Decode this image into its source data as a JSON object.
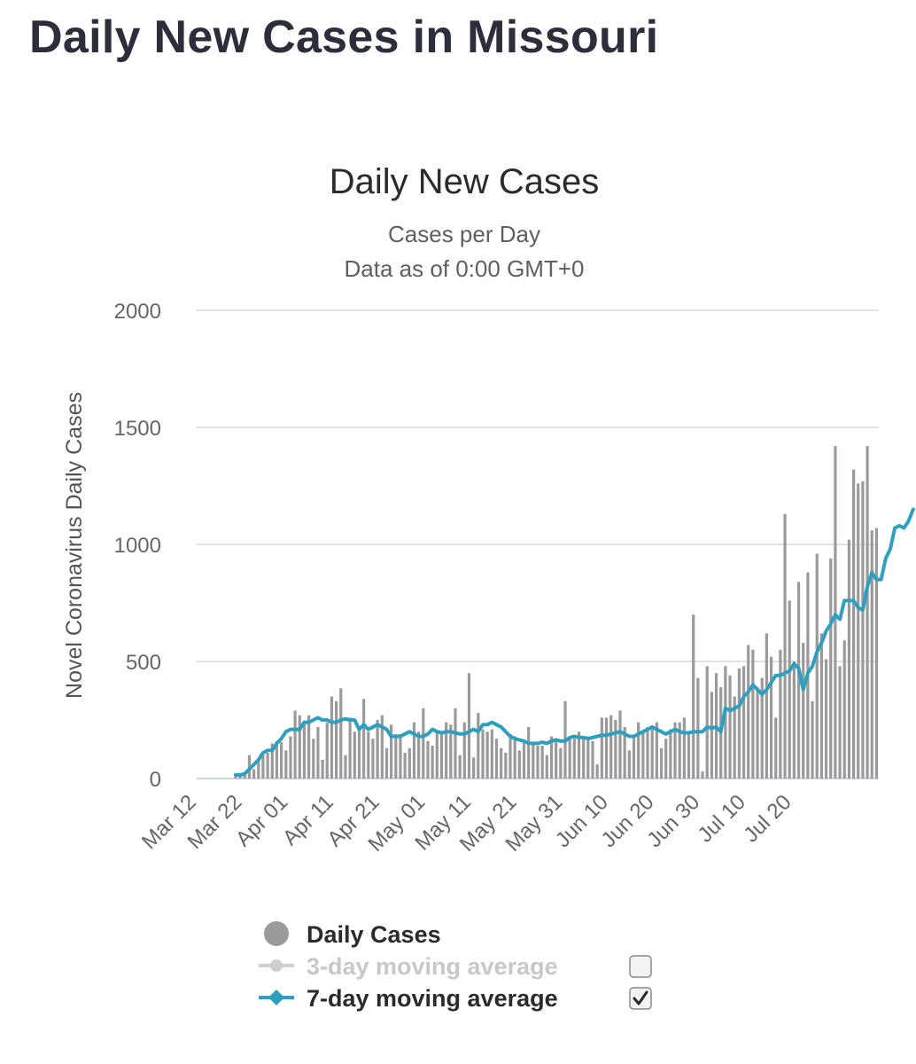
{
  "page": {
    "title": "Daily New Cases in Missouri"
  },
  "chart_data": {
    "type": "bar",
    "title": "Daily New Cases",
    "subtitle_lines": [
      "Cases per Day",
      "Data as of 0:00 GMT+0"
    ],
    "ylabel": "Novel Coronavirus Daily Cases",
    "ylim": [
      0,
      2000
    ],
    "yticks": [
      0,
      500,
      1000,
      1500,
      2000
    ],
    "xtick_labels": [
      "Mar 12",
      "Mar 22",
      "Apr 01",
      "Apr 11",
      "Apr 21",
      "May 01",
      "May 11",
      "May 21",
      "May 31",
      "Jun 10",
      "Jun 20",
      "Jun 30",
      "Jul 10",
      "Jul 20"
    ],
    "xtick_every": 10,
    "start_date": "Mar 12",
    "colors": {
      "bars": "#9a9a9a",
      "avg3": "#cfcfcf",
      "avg7": "#2f9fc0",
      "grid": "#e2e2e2",
      "axis": "#c9d5e6"
    },
    "legend": [
      {
        "key": "daily",
        "label": "Daily Cases",
        "marker": "circle",
        "checkbox": null,
        "color": "#9a9a9a",
        "text_color": "#2b2b2b"
      },
      {
        "key": "avg3",
        "label": "3-day moving average",
        "marker": "line-circle",
        "checkbox": false,
        "color": "#cfcfcf",
        "text_color": "#c8c8c8"
      },
      {
        "key": "avg7",
        "label": "7-day moving average",
        "marker": "line-diamond",
        "checkbox": true,
        "color": "#2f9fc0",
        "text_color": "#2b2b2b"
      }
    ],
    "series": [
      {
        "name": "Daily Cases",
        "type": "bar",
        "values": [
          0,
          0,
          0,
          0,
          0,
          0,
          0,
          0,
          10,
          15,
          20,
          100,
          40,
          80,
          100,
          110,
          150,
          160,
          155,
          120,
          180,
          290,
          270,
          240,
          270,
          170,
          220,
          80,
          240,
          350,
          330,
          385,
          100,
          260,
          200,
          220,
          340,
          200,
          170,
          250,
          270,
          130,
          230,
          190,
          190,
          110,
          130,
          240,
          200,
          300,
          160,
          140,
          200,
          190,
          240,
          230,
          300,
          100,
          240,
          450,
          90,
          280,
          210,
          200,
          210,
          170,
          130,
          110,
          190,
          180,
          120,
          160,
          220,
          150,
          140,
          140,
          100,
          180,
          160,
          130,
          330,
          170,
          170,
          200,
          180,
          180,
          160,
          60,
          260,
          260,
          270,
          250,
          290,
          220,
          120,
          180,
          240,
          200,
          220,
          210,
          240,
          130,
          170,
          210,
          240,
          240,
          260,
          200,
          700,
          430,
          30,
          480,
          370,
          450,
          390,
          480,
          440,
          350,
          470,
          480,
          570,
          550,
          390,
          430,
          620,
          520,
          260,
          550,
          1130,
          760,
          500,
          840,
          580,
          880,
          330,
          960,
          620,
          510,
          940,
          1420,
          480,
          590,
          1020,
          1320,
          1260,
          1270,
          1420,
          1060,
          1070
        ],
        "color": "#9a9a9a"
      },
      {
        "name": "7-day moving average",
        "type": "line",
        "start_index": 8,
        "values": [
          15,
          15,
          20,
          40,
          60,
          80,
          110,
          120,
          120,
          150,
          170,
          200,
          210,
          210,
          210,
          240,
          240,
          250,
          260,
          250,
          250,
          240,
          240,
          250,
          255,
          250,
          250,
          210,
          230,
          210,
          220,
          230,
          220,
          210,
          180,
          180,
          180,
          190,
          200,
          190,
          180,
          180,
          190,
          210,
          200,
          195,
          200,
          200,
          195,
          190,
          190,
          200,
          210,
          200,
          230,
          230,
          240,
          230,
          220,
          200,
          180,
          170,
          165,
          160,
          150,
          150,
          150,
          155,
          150,
          160,
          165,
          160,
          160,
          175,
          180,
          175,
          175,
          170,
          175,
          180,
          185,
          185,
          190,
          195,
          200,
          190,
          180,
          180,
          190,
          200,
          210,
          220,
          210,
          200,
          190,
          200,
          210,
          200,
          195,
          195,
          200,
          200,
          200,
          220,
          215,
          220,
          200,
          300,
          290,
          300,
          310,
          350,
          370,
          400,
          380,
          360,
          380,
          410,
          440,
          440,
          450,
          460,
          490,
          470,
          380,
          450,
          480,
          540,
          580,
          630,
          660,
          700,
          680,
          760,
          760,
          760,
          730,
          720,
          820,
          880,
          850,
          850,
          940,
          980,
          1070,
          1080,
          1070,
          1100,
          1150
        ],
        "color": "#2f9fc0"
      }
    ]
  }
}
